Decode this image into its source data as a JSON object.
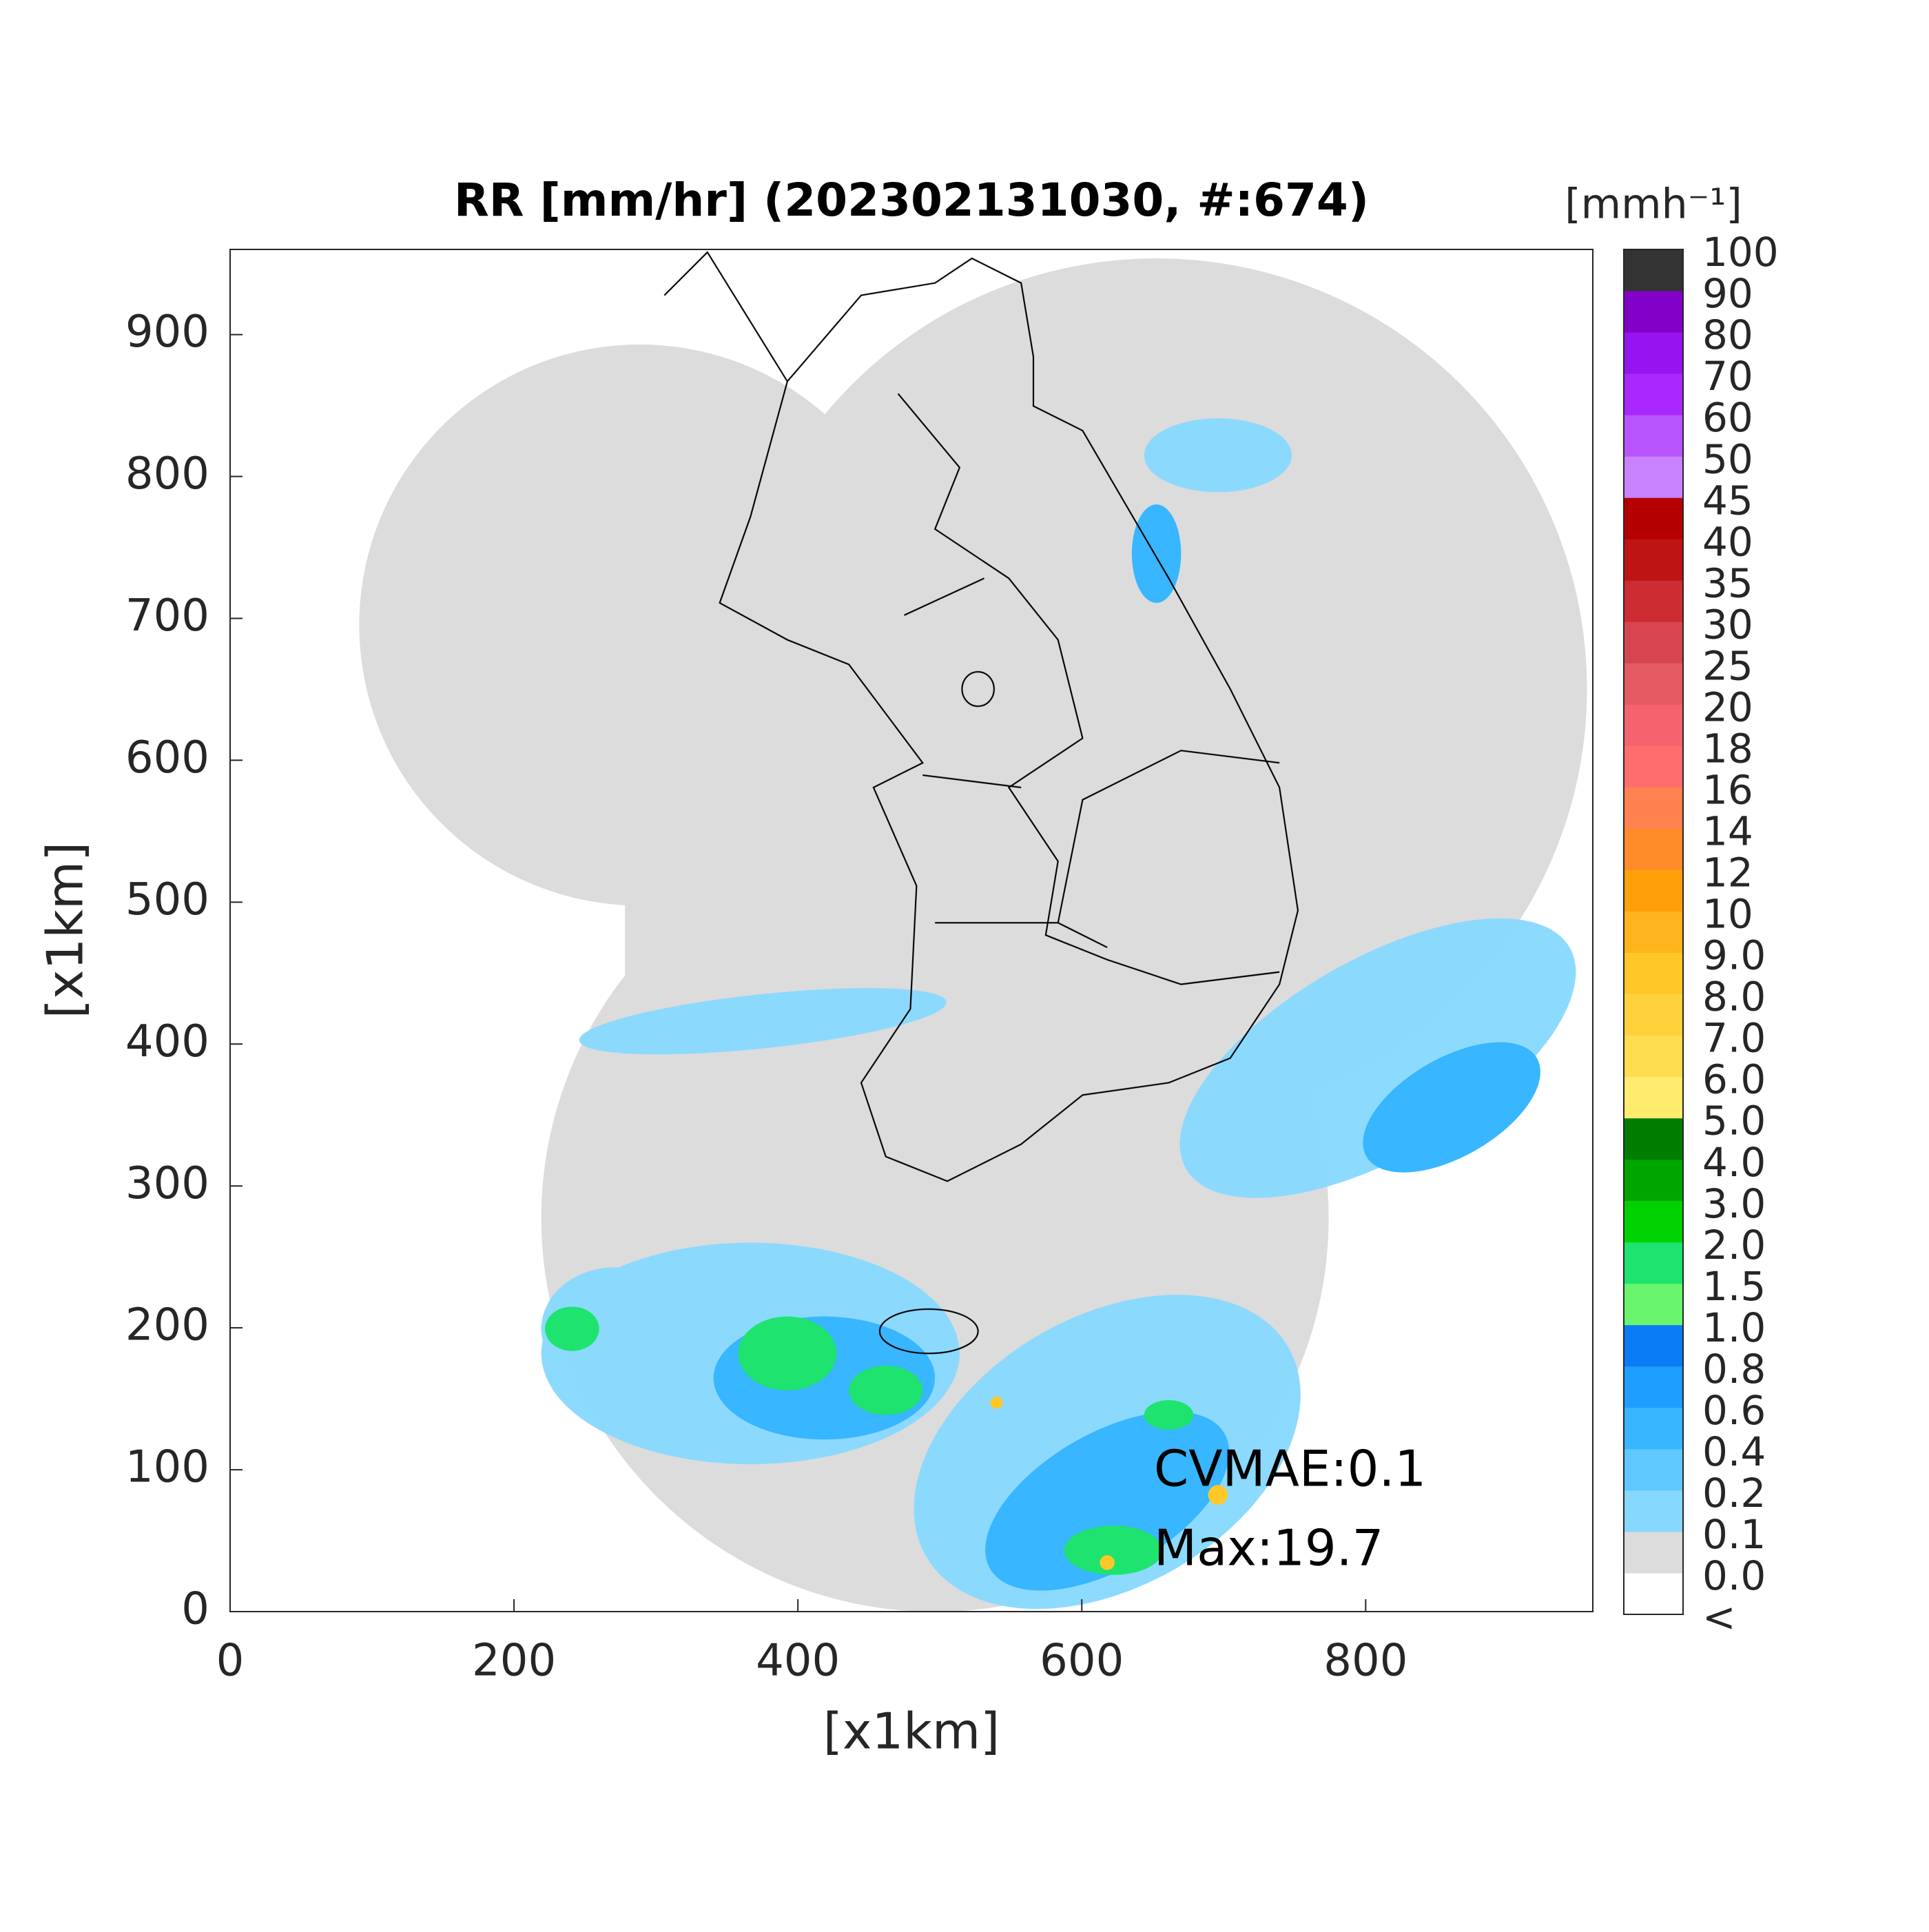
{
  "chart_data": {
    "type": "radar-map",
    "title": "RR [mm/hr] (202302131030, #:674)",
    "xlabel": "[x1km]",
    "ylabel": "[x1km]",
    "xlim": [
      0,
      960
    ],
    "ylim": [
      0,
      960
    ],
    "xticks": [
      0,
      200,
      400,
      600,
      800
    ],
    "yticks": [
      0,
      100,
      200,
      300,
      400,
      500,
      600,
      700,
      800,
      900
    ],
    "annotations": [
      "CVMAE:0.1",
      "Max:19.7"
    ],
    "colorbar": {
      "title": "[mmh⁻¹]",
      "labels": [
        "<",
        "0.0",
        "0.1",
        "0.2",
        "0.4",
        "0.6",
        "0.8",
        "1.0",
        "1.5",
        "2.0",
        "3.0",
        "4.0",
        "5.0",
        "6.0",
        "7.0",
        "8.0",
        "9.0",
        "10",
        "12",
        "14",
        "16",
        "18",
        "20",
        "25",
        "30",
        "35",
        "40",
        "45",
        "50",
        "60",
        "70",
        "80",
        "90",
        "100"
      ],
      "colors": [
        "#ffffff",
        "#dcdcdc",
        "#87d8ff",
        "#5ec8ff",
        "#38b6ff",
        "#1e9eff",
        "#0a7cf5",
        "#69f56e",
        "#1ee36e",
        "#00d200",
        "#00a500",
        "#007d00",
        "#ffeb6e",
        "#ffdc50",
        "#ffd23c",
        "#ffc828",
        "#ffb41e",
        "#ffa00a",
        "#ff8c28",
        "#ff8250",
        "#ff6e6e",
        "#f5646e",
        "#e65a64",
        "#d74650",
        "#cd2d32",
        "#be1414",
        "#b40000",
        "#c882ff",
        "#b955ff",
        "#aa28ff",
        "#9614f0",
        "#8200c8",
        "#333333"
      ]
    }
  }
}
